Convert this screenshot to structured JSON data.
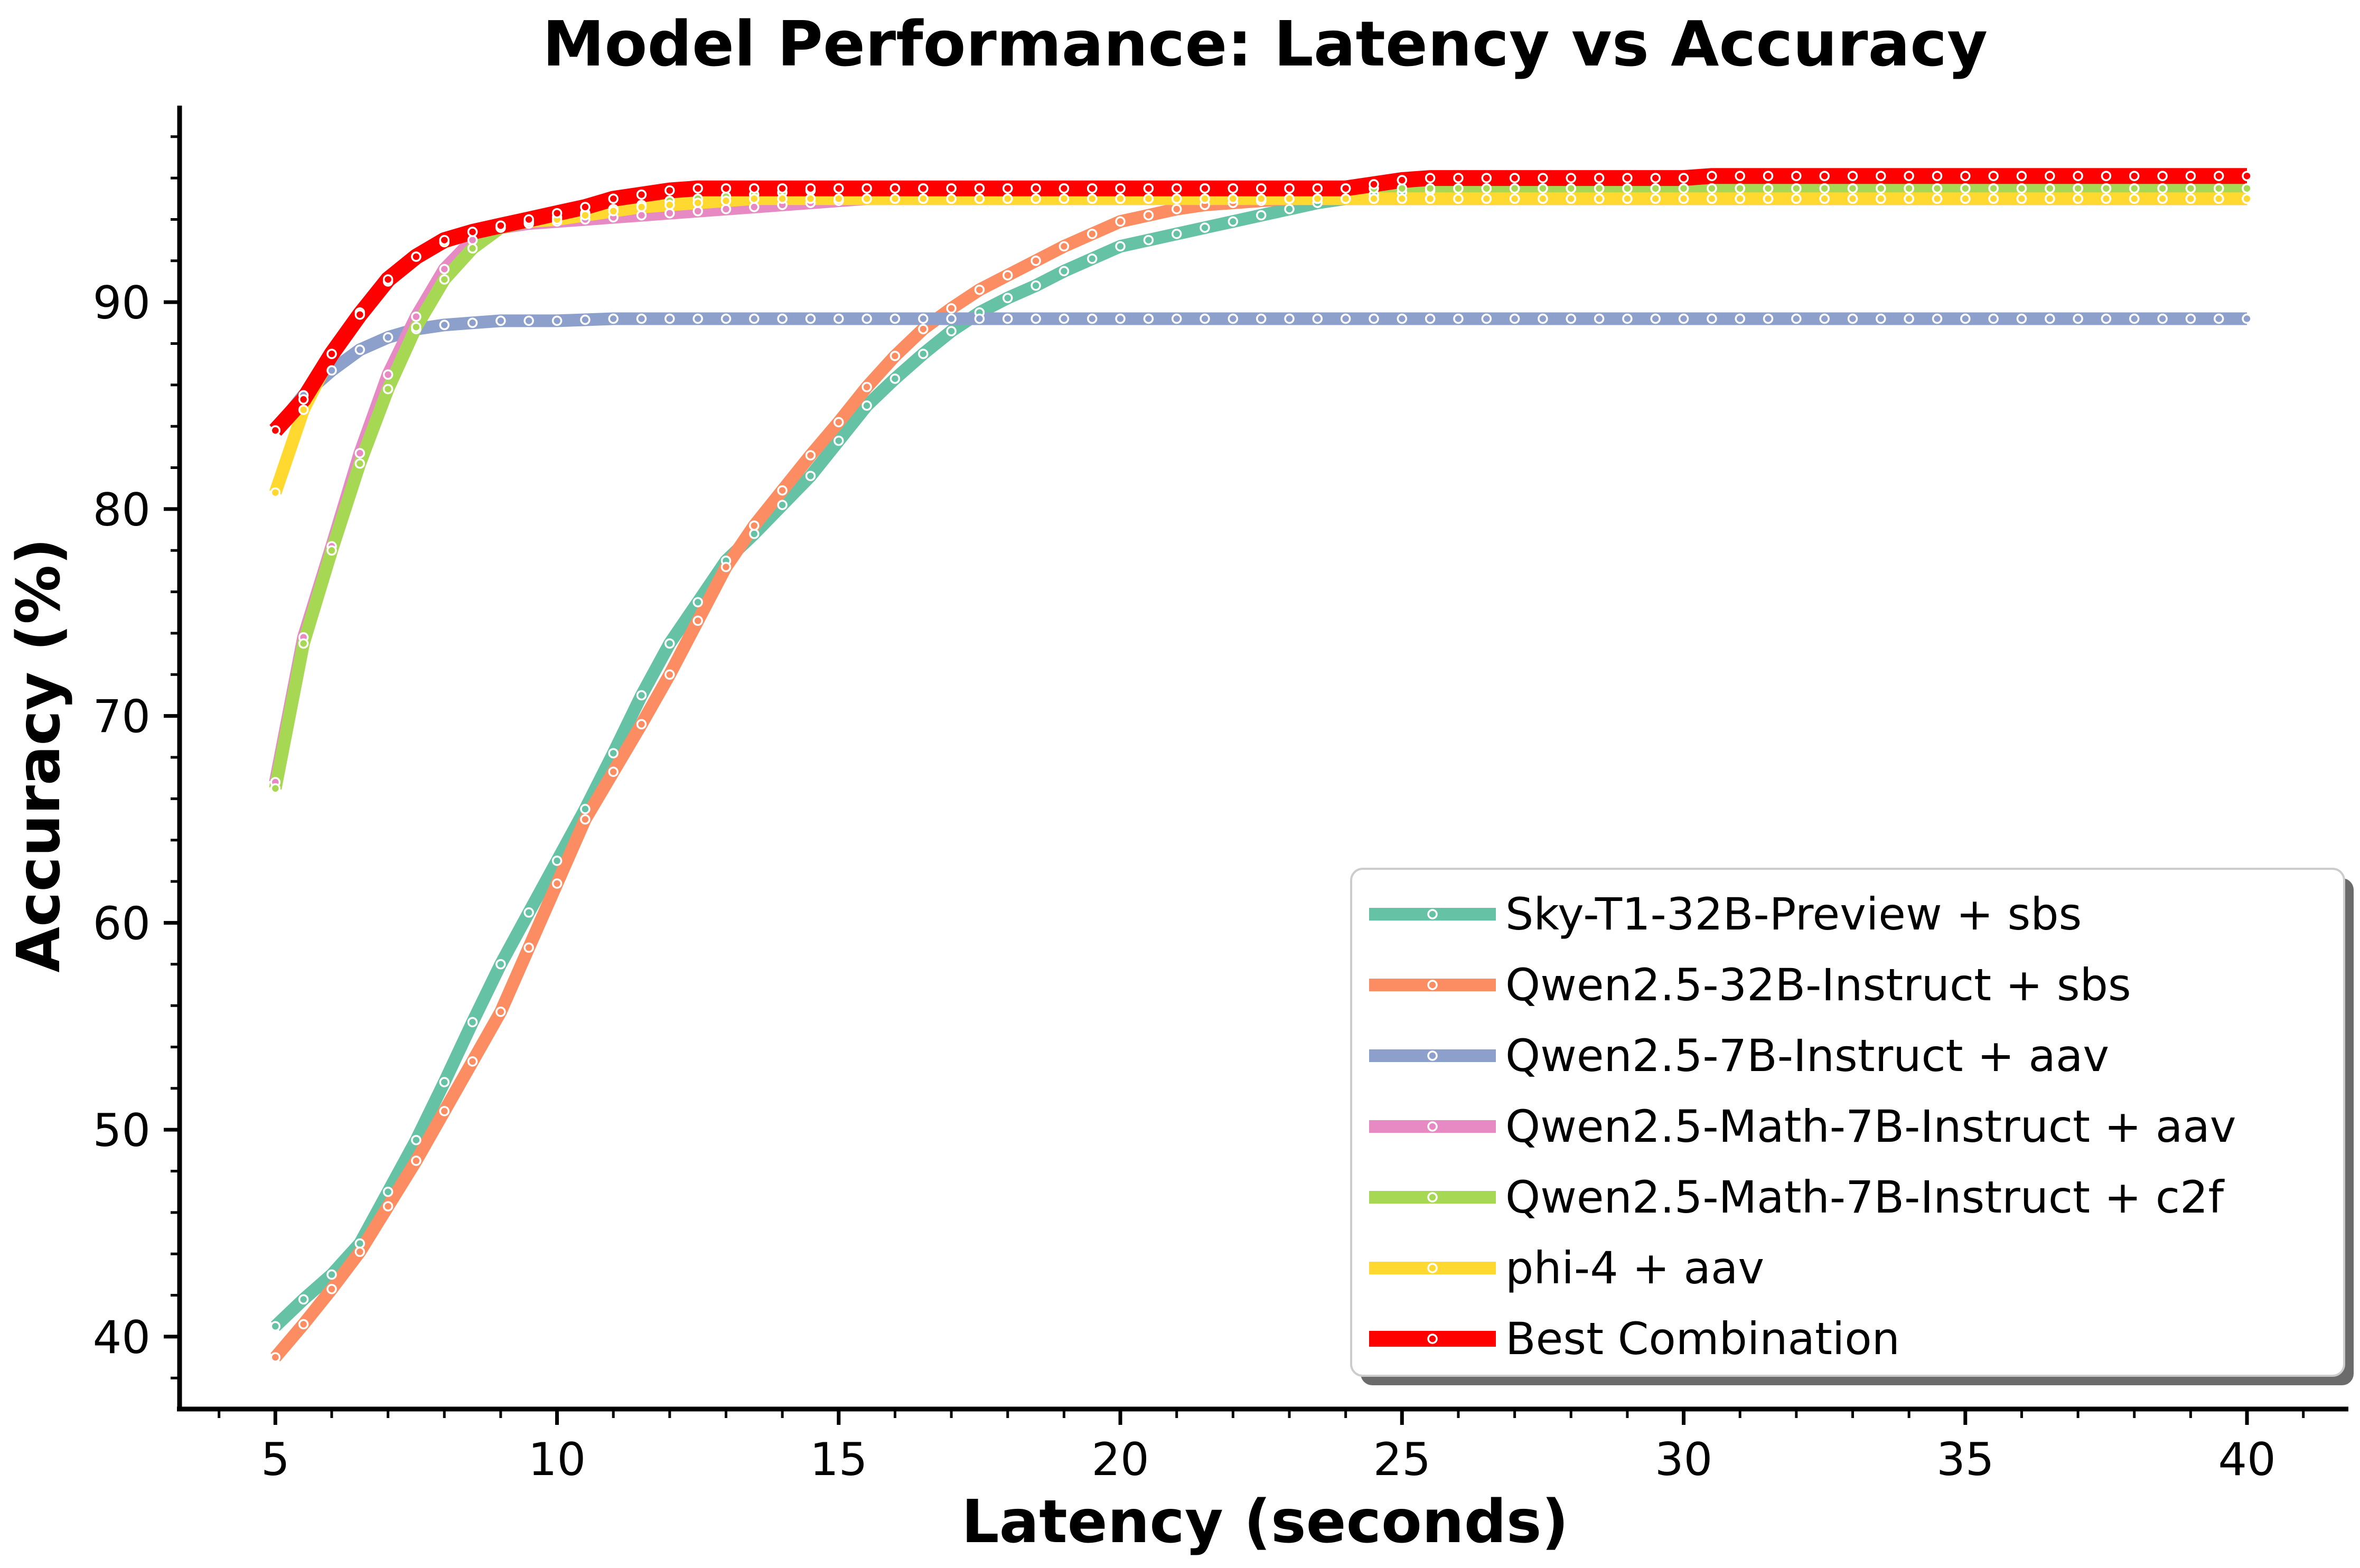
{
  "chart_data": {
    "type": "line",
    "title": "Model Performance: Latency vs Accuracy",
    "xlabel": "Latency (seconds)",
    "ylabel": "Accuracy (%)",
    "xlim": [
      3.3,
      41.8
    ],
    "ylim": [
      36.5,
      99.5
    ],
    "xticks": [
      5,
      10,
      15,
      20,
      25,
      30,
      35,
      40
    ],
    "yticks": [
      40,
      50,
      60,
      70,
      80,
      90
    ],
    "xtick_labels": [
      "5",
      "10",
      "15",
      "20",
      "25",
      "30",
      "35",
      "40"
    ],
    "ytick_labels": [
      "40",
      "50",
      "60",
      "70",
      "80",
      "90"
    ],
    "grid": false,
    "legend_position": "lower-right",
    "x": [
      5.0,
      5.5,
      6.0,
      6.5,
      7.0,
      7.5,
      8.0,
      8.5,
      9.0,
      9.5,
      10.0,
      10.5,
      11.0,
      11.5,
      12.0,
      12.5,
      13.0,
      13.5,
      14.0,
      14.5,
      15.0,
      15.5,
      16.0,
      16.5,
      17.0,
      17.5,
      18.0,
      18.5,
      19.0,
      19.5,
      20.0,
      20.5,
      21.0,
      21.5,
      22.0,
      22.5,
      23.0,
      23.5,
      24.0,
      24.5,
      25.0,
      25.5,
      26.0,
      26.5,
      27.0,
      27.5,
      28.0,
      28.5,
      29.0,
      29.5,
      30.0,
      30.5,
      31.0,
      31.5,
      32.0,
      32.5,
      33.0,
      33.5,
      34.0,
      34.5,
      35.0,
      35.5,
      36.0,
      36.5,
      37.0,
      37.5,
      38.0,
      38.5,
      39.0,
      39.5,
      40.0
    ],
    "series": [
      {
        "name": "Sky-T1-32B-Preview + sbs",
        "color": "#66c2a5",
        "values": [
          40.5,
          41.8,
          43.0,
          44.5,
          47.0,
          49.5,
          52.3,
          55.2,
          58.0,
          60.5,
          63.0,
          65.5,
          68.2,
          71.0,
          73.5,
          75.5,
          77.5,
          78.8,
          80.2,
          81.6,
          83.3,
          85.0,
          86.3,
          87.5,
          88.6,
          89.5,
          90.2,
          90.8,
          91.5,
          92.1,
          92.7,
          93.0,
          93.3,
          93.6,
          93.9,
          94.2,
          94.5,
          94.8,
          95.0,
          95.2,
          95.3,
          95.4,
          95.5,
          95.5,
          95.5,
          95.5,
          95.5,
          95.5,
          95.5,
          95.5,
          95.5,
          95.5,
          95.5,
          95.5,
          95.5,
          95.5,
          95.5,
          95.5,
          95.5,
          95.5,
          95.5,
          95.5,
          95.5,
          95.5,
          95.5,
          95.5,
          95.5,
          95.5,
          95.5,
          95.5,
          95.5
        ]
      },
      {
        "name": "Qwen2.5-32B-Instruct + sbs",
        "color": "#fc8d62",
        "values": [
          39.0,
          40.6,
          42.3,
          44.1,
          46.3,
          48.5,
          50.9,
          53.3,
          55.7,
          58.8,
          61.9,
          65.0,
          67.3,
          69.6,
          72.0,
          74.6,
          77.2,
          79.2,
          80.9,
          82.6,
          84.2,
          85.9,
          87.4,
          88.7,
          89.7,
          90.6,
          91.3,
          92.0,
          92.7,
          93.3,
          93.9,
          94.2,
          94.5,
          94.7,
          94.8,
          94.9,
          95.0,
          95.0,
          95.0,
          95.0,
          95.0,
          95.0,
          95.0,
          95.0,
          95.0,
          95.0,
          95.0,
          95.0,
          95.0,
          95.0,
          95.0,
          95.0,
          95.0,
          95.0,
          95.0,
          95.0,
          95.0,
          95.0,
          95.0,
          95.0,
          95.0,
          95.0,
          95.0,
          95.0,
          95.0,
          95.0,
          95.0,
          95.0,
          95.0,
          95.0,
          95.0
        ]
      },
      {
        "name": "Qwen2.5-7B-Instruct + aav",
        "color": "#8da0cb",
        "values": [
          83.8,
          85.5,
          86.7,
          87.7,
          88.3,
          88.7,
          88.9,
          89.0,
          89.1,
          89.1,
          89.1,
          89.15,
          89.2,
          89.2,
          89.2,
          89.2,
          89.2,
          89.2,
          89.2,
          89.2,
          89.2,
          89.2,
          89.2,
          89.2,
          89.2,
          89.2,
          89.2,
          89.2,
          89.2,
          89.2,
          89.2,
          89.2,
          89.2,
          89.2,
          89.2,
          89.2,
          89.2,
          89.2,
          89.2,
          89.2,
          89.2,
          89.2,
          89.2,
          89.2,
          89.2,
          89.2,
          89.2,
          89.2,
          89.2,
          89.2,
          89.2,
          89.2,
          89.2,
          89.2,
          89.2,
          89.2,
          89.2,
          89.2,
          89.2,
          89.2,
          89.2,
          89.2,
          89.2,
          89.2,
          89.2,
          89.2,
          89.2,
          89.2,
          89.2,
          89.2,
          89.2
        ]
      },
      {
        "name": "Qwen2.5-Math-7B-Instruct + aav",
        "color": "#e78ac3",
        "values": [
          66.8,
          73.8,
          78.2,
          82.7,
          86.5,
          89.3,
          91.6,
          93.0,
          93.6,
          93.8,
          93.9,
          94.0,
          94.1,
          94.2,
          94.3,
          94.4,
          94.5,
          94.6,
          94.7,
          94.8,
          94.9,
          95.0,
          95.0,
          95.0,
          95.0,
          95.0,
          95.0,
          95.0,
          95.0,
          95.0,
          95.0,
          95.0,
          95.0,
          95.0,
          95.0,
          95.0,
          95.0,
          95.0,
          95.0,
          95.0,
          95.0,
          95.0,
          95.0,
          95.0,
          95.0,
          95.0,
          95.0,
          95.0,
          95.0,
          95.0,
          95.0,
          95.0,
          95.0,
          95.0,
          95.0,
          95.0,
          95.0,
          95.0,
          95.0,
          95.0,
          95.0,
          95.0,
          95.0,
          95.0,
          95.0,
          95.0,
          95.0,
          95.0,
          95.0,
          95.0,
          95.0
        ]
      },
      {
        "name": "Qwen2.5-Math-7B-Instruct + c2f",
        "color": "#a6d854",
        "values": [
          66.5,
          73.5,
          78.0,
          82.2,
          85.8,
          88.8,
          91.1,
          92.6,
          93.6,
          93.9,
          94.1,
          94.3,
          94.5,
          94.7,
          94.9,
          95.0,
          95.1,
          95.2,
          95.3,
          95.4,
          95.5,
          95.5,
          95.5,
          95.5,
          95.5,
          95.5,
          95.5,
          95.5,
          95.5,
          95.5,
          95.5,
          95.5,
          95.5,
          95.5,
          95.5,
          95.5,
          95.5,
          95.5,
          95.5,
          95.5,
          95.5,
          95.5,
          95.5,
          95.5,
          95.5,
          95.5,
          95.5,
          95.5,
          95.5,
          95.5,
          95.5,
          95.5,
          95.5,
          95.5,
          95.5,
          95.5,
          95.5,
          95.5,
          95.5,
          95.5,
          95.5,
          95.5,
          95.5,
          95.5,
          95.5,
          95.5,
          95.5,
          95.5,
          95.5,
          95.5,
          95.5
        ]
      },
      {
        "name": "phi-4 + aav",
        "color": "#ffd92f",
        "values": [
          80.8,
          84.8,
          87.5,
          89.5,
          91.0,
          92.2,
          92.9,
          93.4,
          93.7,
          93.9,
          94.0,
          94.2,
          94.4,
          94.6,
          94.7,
          94.8,
          94.9,
          95.0,
          95.0,
          95.0,
          95.0,
          95.0,
          95.0,
          95.0,
          95.0,
          95.0,
          95.0,
          95.0,
          95.0,
          95.0,
          95.0,
          95.0,
          95.0,
          95.0,
          95.0,
          95.0,
          95.0,
          95.0,
          95.0,
          95.0,
          95.0,
          95.0,
          95.0,
          95.0,
          95.0,
          95.0,
          95.0,
          95.0,
          95.0,
          95.0,
          95.0,
          95.0,
          95.0,
          95.0,
          95.0,
          95.0,
          95.0,
          95.0,
          95.0,
          95.0,
          95.0,
          95.0,
          95.0,
          95.0,
          95.0,
          95.0,
          95.0,
          95.0,
          95.0,
          95.0,
          95.0
        ]
      },
      {
        "name": "Best Combination",
        "color": "#ff0000",
        "values": [
          83.8,
          85.3,
          87.5,
          89.4,
          91.1,
          92.2,
          93.0,
          93.4,
          93.7,
          94.0,
          94.3,
          94.6,
          95.0,
          95.2,
          95.4,
          95.5,
          95.5,
          95.5,
          95.5,
          95.5,
          95.5,
          95.5,
          95.5,
          95.5,
          95.5,
          95.5,
          95.5,
          95.5,
          95.5,
          95.5,
          95.5,
          95.5,
          95.5,
          95.5,
          95.5,
          95.5,
          95.5,
          95.5,
          95.5,
          95.7,
          95.9,
          96.0,
          96.0,
          96.0,
          96.0,
          96.0,
          96.0,
          96.0,
          96.0,
          96.0,
          96.0,
          96.1,
          96.1,
          96.1,
          96.1,
          96.1,
          96.1,
          96.1,
          96.1,
          96.1,
          96.1,
          96.1,
          96.1,
          96.1,
          96.1,
          96.1,
          96.1,
          96.1,
          96.1,
          96.1,
          96.1
        ]
      }
    ]
  }
}
